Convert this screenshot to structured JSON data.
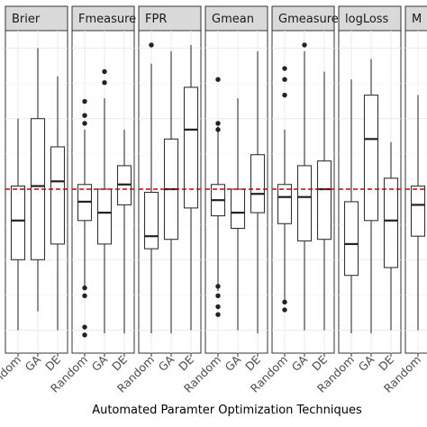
{
  "chart_data": {
    "type": "boxplot",
    "xlabel": "Automated Paramter Optimization Techniques",
    "ylabel": "",
    "reference_line": {
      "y": 0,
      "style": "dashed",
      "color": "#cc0000"
    },
    "ylim": [
      -1.0,
      1.0
    ],
    "grid": true,
    "categories": [
      "Random",
      "GA",
      "DE"
    ],
    "panels": [
      {
        "name": "Brier",
        "boxes": [
          {
            "category": "Random",
            "min": -0.9,
            "q1": -0.45,
            "median": -0.2,
            "q3": 0.02,
            "max": 0.45,
            "outliers": []
          },
          {
            "category": "GA",
            "min": -0.78,
            "q1": -0.45,
            "median": 0.02,
            "q3": 0.45,
            "max": 0.9,
            "outliers": []
          },
          {
            "category": "DE",
            "min": -0.9,
            "q1": -0.35,
            "median": 0.05,
            "q3": 0.27,
            "max": 0.72,
            "outliers": []
          }
        ]
      },
      {
        "name": "Fmeasure",
        "boxes": [
          {
            "category": "Random",
            "min": -0.63,
            "q1": -0.2,
            "median": -0.08,
            "q3": 0.03,
            "max": 0.38,
            "outliers": [
              0.56,
              0.47,
              0.42,
              -0.63,
              -0.68,
              -0.88,
              -0.93
            ]
          },
          {
            "category": "GA",
            "min": -0.92,
            "q1": -0.35,
            "median": -0.15,
            "q3": 0.0,
            "max": 0.58,
            "outliers": [
              0.75,
              0.68
            ]
          },
          {
            "category": "DE",
            "min": -0.92,
            "q1": -0.1,
            "median": 0.03,
            "q3": 0.15,
            "max": 0.38,
            "outliers": []
          }
        ]
      },
      {
        "name": "FPR",
        "boxes": [
          {
            "category": "Random",
            "min": -0.92,
            "q1": -0.38,
            "median": -0.3,
            "q3": -0.02,
            "max": 0.8,
            "outliers": [
              0.92
            ]
          },
          {
            "category": "GA",
            "min": -0.92,
            "q1": -0.32,
            "median": 0.0,
            "q3": 0.32,
            "max": 0.88,
            "outliers": []
          },
          {
            "category": "DE",
            "min": -0.9,
            "q1": -0.12,
            "median": 0.38,
            "q3": 0.65,
            "max": 0.92,
            "outliers": []
          }
        ]
      },
      {
        "name": "Gmean",
        "boxes": [
          {
            "category": "Random",
            "min": -0.65,
            "q1": -0.17,
            "median": -0.07,
            "q3": 0.03,
            "max": 0.4,
            "outliers": [
              0.7,
              0.42,
              0.38,
              -0.62,
              -0.68,
              -0.75,
              -0.8
            ]
          },
          {
            "category": "GA",
            "min": -0.9,
            "q1": -0.25,
            "median": -0.15,
            "q3": 0.0,
            "max": 0.58,
            "outliers": []
          },
          {
            "category": "DE",
            "min": -0.92,
            "q1": -0.15,
            "median": -0.03,
            "q3": 0.22,
            "max": 0.88,
            "outliers": []
          }
        ]
      },
      {
        "name": "Gmeasure",
        "boxes": [
          {
            "category": "Random",
            "min": -0.72,
            "q1": -0.22,
            "median": -0.05,
            "q3": 0.03,
            "max": 0.38,
            "outliers": [
              0.77,
              0.7,
              0.6,
              -0.72,
              -0.77
            ]
          },
          {
            "category": "GA",
            "min": -0.9,
            "q1": -0.33,
            "median": -0.05,
            "q3": 0.15,
            "max": 0.88,
            "outliers": [
              0.92
            ]
          },
          {
            "category": "DE",
            "min": -0.9,
            "q1": -0.32,
            "median": 0.0,
            "q3": 0.18,
            "max": 0.75,
            "outliers": []
          }
        ]
      },
      {
        "name": "logLoss",
        "boxes": [
          {
            "category": "Random",
            "min": -0.92,
            "q1": -0.55,
            "median": -0.35,
            "q3": -0.08,
            "max": 0.7,
            "outliers": []
          },
          {
            "category": "GA",
            "min": -0.92,
            "q1": -0.2,
            "median": 0.32,
            "q3": 0.6,
            "max": 0.83,
            "outliers": []
          },
          {
            "category": "DE",
            "min": -0.9,
            "q1": -0.5,
            "median": -0.2,
            "q3": 0.07,
            "max": 0.3,
            "outliers": []
          }
        ]
      },
      {
        "name": "M",
        "boxes": [
          {
            "category": "Random",
            "min": -0.9,
            "q1": -0.3,
            "median": -0.1,
            "q3": 0.02,
            "max": 0.6,
            "outliers": []
          }
        ]
      }
    ]
  }
}
